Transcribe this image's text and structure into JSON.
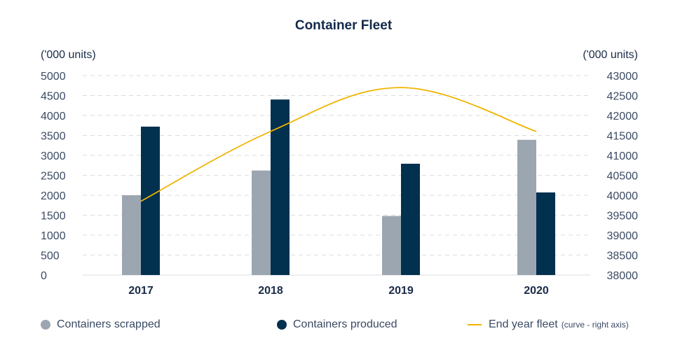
{
  "chart_data": {
    "type": "bar",
    "title": "Container Fleet",
    "left_unit": "('000 units)",
    "right_unit": "('000 units)",
    "categories": [
      "2017",
      "2018",
      "2019",
      "2020"
    ],
    "series": [
      {
        "name": "Containers scrapped",
        "type": "bar",
        "axis": "left",
        "color": "#9ca6b0",
        "values": [
          2000,
          2620,
          1480,
          3390
        ]
      },
      {
        "name": "Containers produced",
        "type": "bar",
        "axis": "left",
        "color": "#02304f",
        "values": [
          3720,
          4400,
          2790,
          2070
        ]
      },
      {
        "name": "End year fleet",
        "type": "line",
        "axis": "right",
        "color": "#f0b400",
        "values": [
          39850,
          41600,
          42700,
          41600
        ]
      }
    ],
    "left_axis": {
      "ylim": [
        0,
        5000
      ],
      "ticks": [
        "0",
        "500",
        "1000",
        "1500",
        "2000",
        "2500",
        "3000",
        "3500",
        "4000",
        "4500",
        "5000"
      ]
    },
    "right_axis": {
      "ylim": [
        38000,
        43000
      ],
      "ticks": [
        "38000",
        "38500",
        "39000",
        "39500",
        "40000",
        "40500",
        "41000",
        "41500",
        "42000",
        "42500",
        "43000"
      ]
    },
    "grid": true,
    "legend_position": "bottom"
  },
  "legend": {
    "scrapped": "Containers scrapped",
    "produced": "Containers produced",
    "fleet": "End year fleet",
    "fleet_note": "(curve - right axis)"
  }
}
